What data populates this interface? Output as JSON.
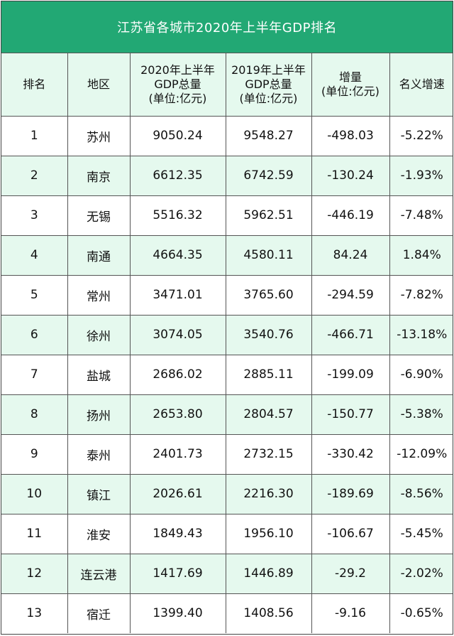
{
  "title": "江苏省各城市2020年上半年GDP排名",
  "colors": {
    "header_bg": "#22a874",
    "stripe": "#e5f9ee"
  },
  "columns": [
    [
      "排名"
    ],
    [
      "地区"
    ],
    [
      "2020年上半年",
      "GDP总量",
      "(单位:亿元)"
    ],
    [
      "2019年上半年",
      "GDP总量",
      "(单位:亿元)"
    ],
    [
      "增量",
      "(单位:亿元)"
    ],
    [
      "名义增速"
    ]
  ],
  "rows": [
    [
      "1",
      "苏州",
      "9050.24",
      "9548.27",
      "-498.03",
      "-5.22%"
    ],
    [
      "2",
      "南京",
      "6612.35",
      "6742.59",
      "-130.24",
      "-1.93%"
    ],
    [
      "3",
      "无锡",
      "5516.32",
      "5962.51",
      "-446.19",
      "-7.48%"
    ],
    [
      "4",
      "南通",
      "4664.35",
      "4580.11",
      "84.24",
      "1.84%"
    ],
    [
      "5",
      "常州",
      "3471.01",
      "3765.60",
      "-294.59",
      "-7.82%"
    ],
    [
      "6",
      "徐州",
      "3074.05",
      "3540.76",
      "-466.71",
      "-13.18%"
    ],
    [
      "7",
      "盐城",
      "2686.02",
      "2885.11",
      "-199.09",
      "-6.90%"
    ],
    [
      "8",
      "扬州",
      "2653.80",
      "2804.57",
      "-150.77",
      "-5.38%"
    ],
    [
      "9",
      "泰州",
      "2401.73",
      "2732.15",
      "-330.42",
      "-12.09%"
    ],
    [
      "10",
      "镇江",
      "2026.61",
      "2216.30",
      "-189.69",
      "-8.56%"
    ],
    [
      "11",
      "淮安",
      "1849.43",
      "1956.10",
      "-106.67",
      "-5.45%"
    ],
    [
      "12",
      "连云港",
      "1417.69",
      "1446.89",
      "-29.2",
      "-2.02%"
    ],
    [
      "13",
      "宿迁",
      "1399.40",
      "1408.56",
      "-9.16",
      "-0.65%"
    ]
  ]
}
